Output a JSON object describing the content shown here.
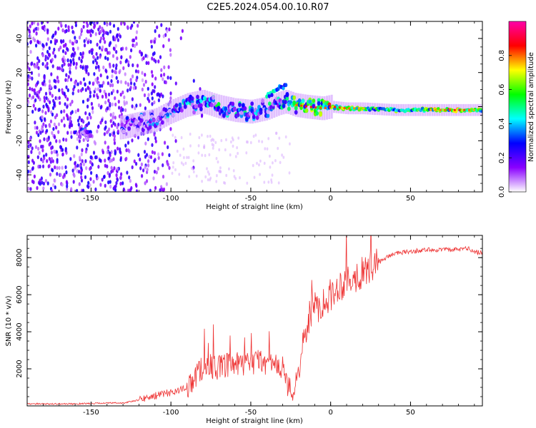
{
  "figure": {
    "title": "C2E5.2024.054.00.10.R07"
  },
  "chart_data": [
    {
      "type": "heatmap",
      "xlabel": "Height of straight line (km)",
      "ylabel": "Frequency (Hz)",
      "xlim": [
        -190,
        95
      ],
      "ylim": [
        -50,
        50
      ],
      "xticks": [
        -150,
        -100,
        -50,
        0,
        50
      ],
      "yticks": [
        -40,
        -20,
        0,
        20,
        40
      ],
      "colorbar": {
        "label": "Normalized spectral amplitude",
        "range": [
          0,
          1
        ],
        "ticks": [
          "0.0",
          "0.2",
          "0.4",
          "0.6",
          "0.8"
        ],
        "colors": [
          "#ffffff",
          "#8a00ff",
          "#0000ff",
          "#00ffff",
          "#00ff00",
          "#ffff00",
          "#ff0000",
          "#ff00aa"
        ]
      },
      "ridge": {
        "x": [
          -155,
          -130,
          -120,
          -110,
          -100,
          -90,
          -80,
          -70,
          -60,
          -50,
          -40,
          -32,
          -28,
          -22,
          -15,
          -5,
          0,
          10,
          20,
          40,
          60,
          80,
          95
        ],
        "frequency": [
          -15,
          -12,
          -10,
          -8,
          -3,
          1,
          3,
          0,
          -2,
          -3,
          -1,
          2,
          3,
          1,
          0,
          -1,
          0,
          -1,
          -1,
          -2,
          -2,
          -2,
          -2
        ],
        "amplitude": [
          0.35,
          0.3,
          0.35,
          0.4,
          0.45,
          0.5,
          0.5,
          0.55,
          0.5,
          0.55,
          0.5,
          0.45,
          0.6,
          0.8,
          0.85,
          0.8,
          0.85,
          0.8,
          0.75,
          0.65,
          0.75,
          0.85,
          0.7
        ]
      }
    },
    {
      "type": "line",
      "xlabel": "Height of straight line (km)",
      "ylabel": "SNR (10 * v/v)",
      "xlim": [
        -190,
        95
      ],
      "ylim": [
        0,
        9200
      ],
      "xticks": [
        -150,
        -100,
        -50,
        0,
        50
      ],
      "yticks": [
        2000,
        4000,
        6000,
        8000
      ],
      "series": [
        {
          "color": "#ee3333",
          "x": [
            -190,
            -160,
            -140,
            -130,
            -120,
            -110,
            -100,
            -90,
            -85,
            -80,
            -75,
            -70,
            -65,
            -60,
            -55,
            -50,
            -45,
            -40,
            -35,
            -30,
            -26,
            -24,
            -22,
            -20,
            -18,
            -15,
            -12,
            -8,
            -5,
            -3,
            0,
            3,
            5,
            10,
            15,
            20,
            25,
            30,
            35,
            40,
            50,
            60,
            70,
            80,
            85,
            90,
            95
          ],
          "y": [
            100,
            100,
            150,
            150,
            300,
            500,
            700,
            900,
            1400,
            2000,
            2000,
            1900,
            2000,
            2100,
            2000,
            2200,
            2300,
            2200,
            2000,
            1900,
            800,
            400,
            800,
            2000,
            3000,
            4000,
            5000,
            5200,
            5400,
            5600,
            5800,
            6000,
            6300,
            6600,
            6800,
            7000,
            7300,
            7700,
            8000,
            8200,
            8300,
            8400,
            8400,
            8400,
            8500,
            8300,
            8200
          ]
        }
      ]
    }
  ]
}
